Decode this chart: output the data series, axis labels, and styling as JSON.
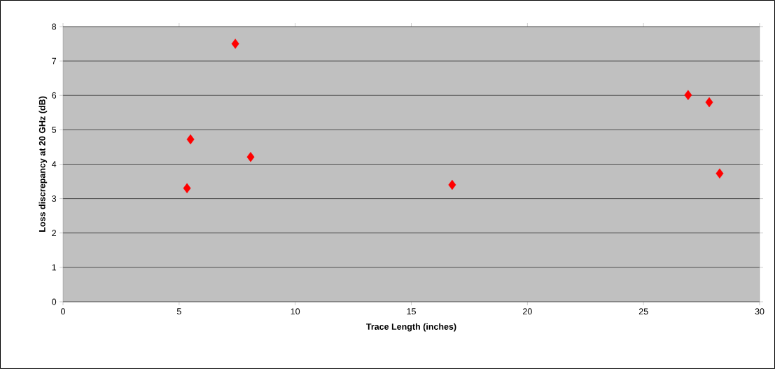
{
  "chart_data": {
    "type": "scatter",
    "xlabel": "Trace Length (inches)",
    "ylabel": "Loss discrepancy at 20 GHz (dB)",
    "x": [
      7.42,
      5.34,
      5.49,
      8.08,
      16.76,
      26.92,
      27.83,
      28.28
    ],
    "values": [
      7.5,
      3.3,
      4.72,
      4.21,
      3.4,
      6.01,
      5.8,
      3.73
    ],
    "color": "#ff0000",
    "marker": "diamond",
    "grid": "y",
    "xlim": [
      0,
      30
    ],
    "ylim": [
      0,
      8
    ],
    "xticks": [
      0,
      5,
      10,
      15,
      20,
      25,
      30
    ],
    "yticks": [
      0,
      1,
      2,
      3,
      4,
      5,
      6,
      7,
      8
    ]
  }
}
